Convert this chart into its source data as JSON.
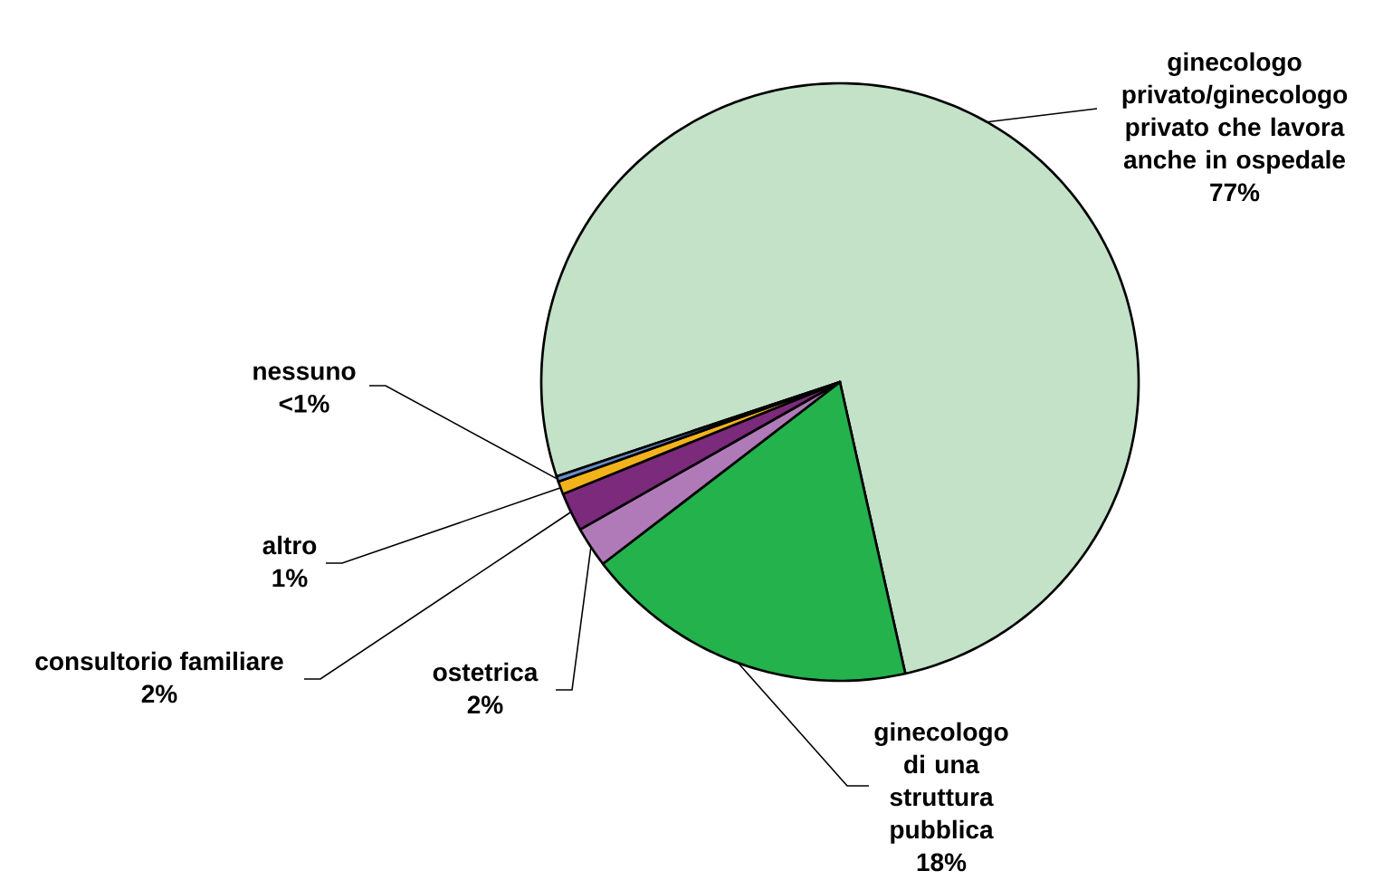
{
  "chart_data": {
    "type": "pie",
    "categories": [
      "ginecologo privato/ginecologo privato che lavora anche in ospedale",
      "ginecologo di una struttura pubblica",
      "ostetrica",
      "consultorio familiare",
      "altro",
      "nessuno"
    ],
    "values": [
      76.6,
      18.1,
      2.2,
      2.1,
      0.7,
      0.3
    ],
    "colors": [
      "#c3e2c8",
      "#23b24c",
      "#b07ab8",
      "#7b2a7c",
      "#f2b21b",
      "#6b8fc8"
    ],
    "value_labels": [
      "77%",
      "18%",
      "2%",
      "2%",
      "1%",
      "<1%"
    ]
  }
}
